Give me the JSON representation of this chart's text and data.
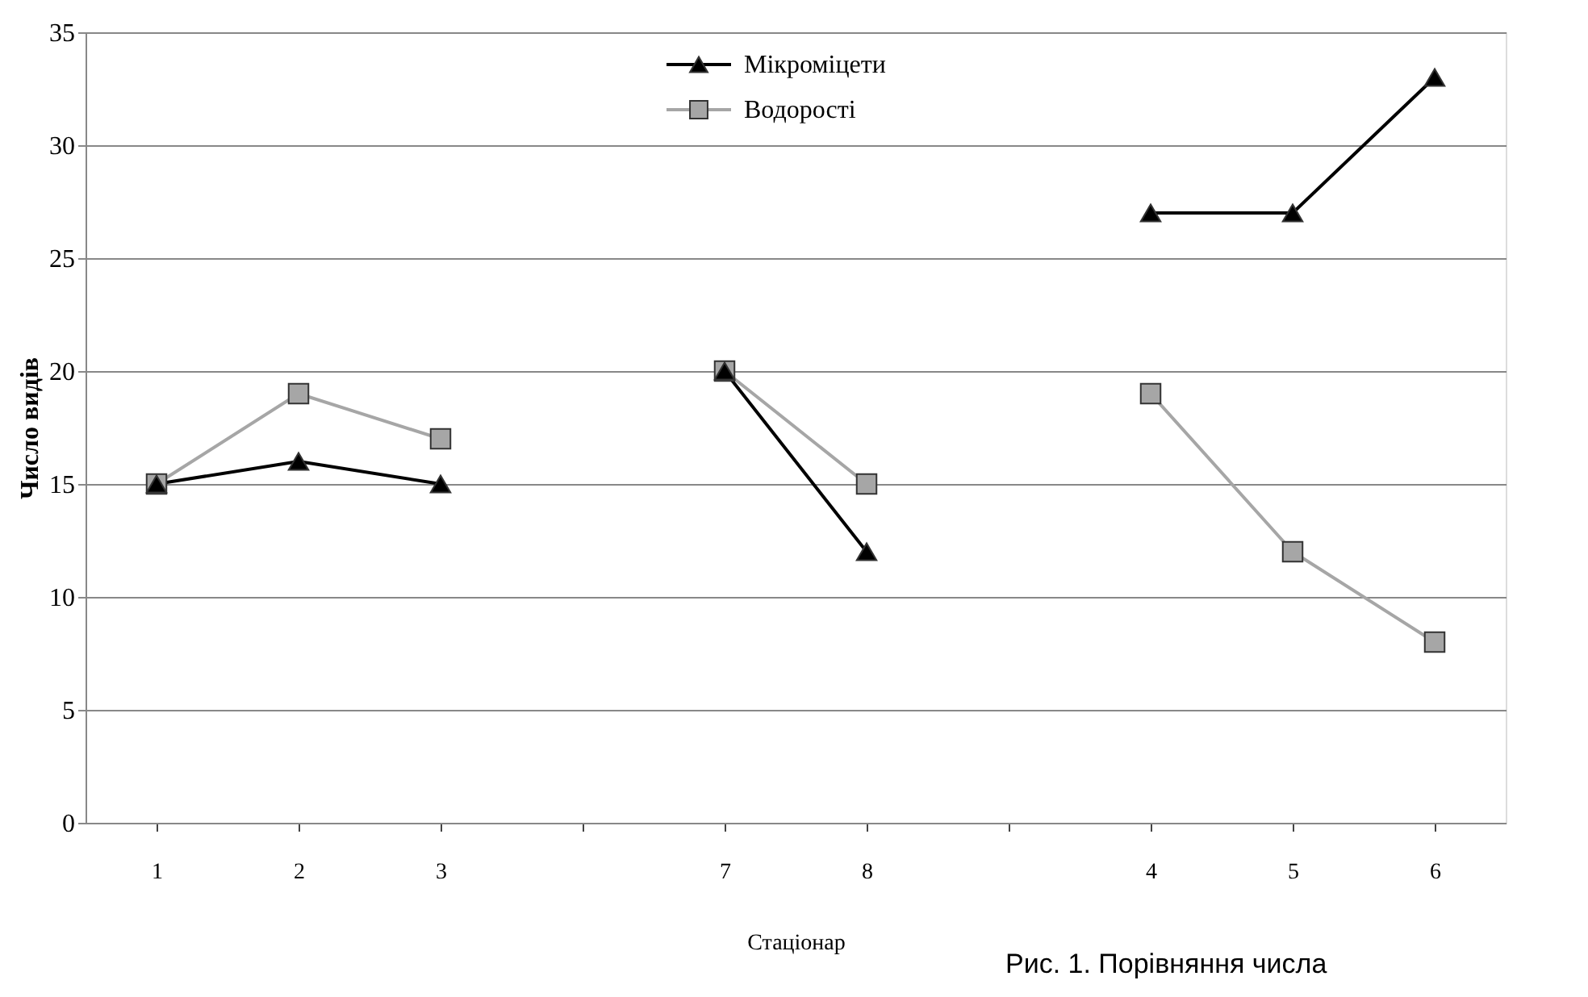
{
  "chart_data": {
    "type": "line",
    "xlabel": "Стаціонар",
    "ylabel": "Число видів",
    "categories": [
      "1",
      "2",
      "3",
      null,
      "7",
      "8",
      null,
      "4",
      "5",
      "6"
    ],
    "series": [
      {
        "name": "Мікроміцети",
        "color": "#000000",
        "marker": "triangle",
        "values": [
          15,
          16,
          15,
          null,
          20,
          12,
          null,
          27,
          27,
          33
        ]
      },
      {
        "name": "Водорості",
        "color": "#a6a6a6",
        "marker": "square",
        "values": [
          15,
          19,
          17,
          null,
          20,
          15,
          null,
          19,
          12,
          8
        ]
      }
    ],
    "ylim": [
      0,
      35
    ],
    "yticks": [
      0,
      5,
      10,
      15,
      20,
      25,
      30,
      35
    ],
    "grid": "y",
    "legend": "top",
    "annotations": [
      "Рис. 1. Порівняння числа"
    ]
  }
}
